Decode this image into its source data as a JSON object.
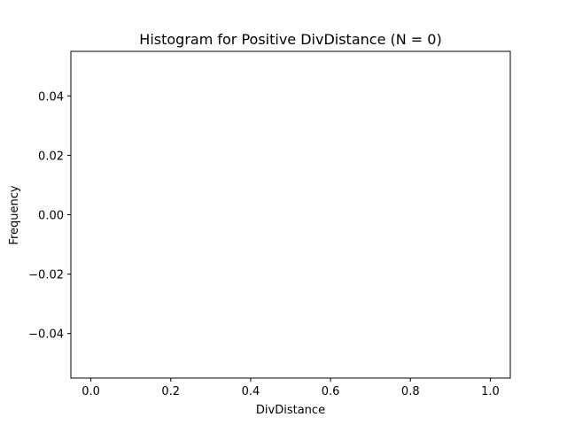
{
  "chart_data": {
    "type": "bar",
    "title": "Histogram for Positive DivDistance (N = 0)",
    "xlabel": "DivDistance",
    "ylabel": "Frequency",
    "categories": [],
    "values": [],
    "xlim": [
      -0.05,
      1.05
    ],
    "ylim": [
      -0.055,
      0.055
    ],
    "xticks": [
      0.0,
      0.2,
      0.4,
      0.6,
      0.8,
      1.0
    ],
    "xtick_labels": [
      "0.0",
      "0.2",
      "0.4",
      "0.6",
      "0.8",
      "1.0"
    ],
    "yticks": [
      -0.04,
      -0.02,
      0.0,
      0.02,
      0.04
    ],
    "ytick_labels": [
      "−0.04",
      "−0.02",
      "0.00",
      "0.02",
      "0.04"
    ],
    "grid": false,
    "legend": false
  }
}
